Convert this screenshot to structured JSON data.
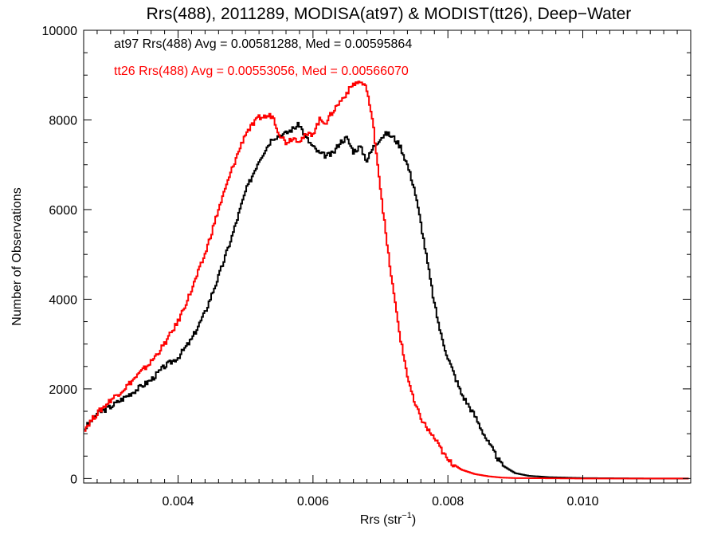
{
  "chart_data": {
    "type": "line",
    "title": "Rrs(488), 2011289, MODISA(at97) & MODIST(tt26), Deep−Water",
    "xlabel": "Rrs (str",
    "xlabel_sup": "−1",
    "xlabel_end": ")",
    "ylabel": "Number of Observations",
    "xlim": [
      0.00261,
      0.01155
    ],
    "ylim": [
      -100,
      10000
    ],
    "x_ticks": [
      0.004,
      0.006,
      0.008,
      0.01
    ],
    "x_tick_labels": [
      "0.004",
      "0.006",
      "0.008",
      "0.010"
    ],
    "y_ticks": [
      0,
      2000,
      4000,
      6000,
      8000,
      10000
    ],
    "y_tick_labels": [
      "0",
      "2000",
      "4000",
      "6000",
      "8000",
      "10000"
    ],
    "grid": false,
    "legend_position": "top-left",
    "series": [
      {
        "name": "at97",
        "color": "#000000",
        "label": "at97 Rrs(488) Avg = 0.00581288, Med = 0.00595864",
        "x": [
          0.00261,
          0.0028,
          0.003,
          0.0032,
          0.0034,
          0.0036,
          0.0038,
          0.004,
          0.0042,
          0.0044,
          0.0046,
          0.0048,
          0.005,
          0.0052,
          0.0054,
          0.0056,
          0.0058,
          0.0059,
          0.006,
          0.0061,
          0.0062,
          0.0063,
          0.0064,
          0.0065,
          0.0066,
          0.0067,
          0.0068,
          0.0069,
          0.007,
          0.0071,
          0.0072,
          0.0073,
          0.0074,
          0.0075,
          0.0076,
          0.0077,
          0.0078,
          0.0079,
          0.008,
          0.0082,
          0.0084,
          0.0086,
          0.0088,
          0.009,
          0.0092,
          0.0095,
          0.01,
          0.0105,
          0.011,
          0.01155
        ],
        "y": [
          1100,
          1450,
          1600,
          1800,
          2000,
          2200,
          2500,
          2700,
          3100,
          3700,
          4500,
          5400,
          6400,
          7100,
          7600,
          7700,
          7900,
          7600,
          7400,
          7250,
          7200,
          7250,
          7500,
          7600,
          7300,
          7400,
          7100,
          7400,
          7600,
          7700,
          7600,
          7400,
          7000,
          6500,
          5700,
          4800,
          3900,
          3200,
          2700,
          1900,
          1400,
          800,
          300,
          120,
          60,
          30,
          10,
          5,
          0,
          0
        ]
      },
      {
        "name": "tt26",
        "color": "#ff0000",
        "label": "tt26 Rrs(488) Avg = 0.00553056, Med = 0.00566070",
        "x": [
          0.00261,
          0.0028,
          0.003,
          0.0032,
          0.0034,
          0.0036,
          0.0038,
          0.004,
          0.0042,
          0.0044,
          0.0046,
          0.0048,
          0.005,
          0.0052,
          0.0054,
          0.0055,
          0.0056,
          0.0057,
          0.0058,
          0.0059,
          0.006,
          0.0061,
          0.0062,
          0.0063,
          0.0064,
          0.0065,
          0.0066,
          0.0067,
          0.0068,
          0.0069,
          0.007,
          0.0071,
          0.0072,
          0.0073,
          0.0074,
          0.0075,
          0.0076,
          0.0077,
          0.0078,
          0.0079,
          0.008,
          0.0082,
          0.0084,
          0.0086,
          0.0088,
          0.009,
          0.0095,
          0.01,
          0.0105,
          0.01155
        ],
        "y": [
          1100,
          1450,
          1750,
          2000,
          2300,
          2600,
          3000,
          3500,
          4200,
          5000,
          6000,
          6900,
          7700,
          8050,
          8100,
          7700,
          7500,
          7600,
          7550,
          7650,
          7700,
          8000,
          7950,
          8200,
          8400,
          8600,
          8800,
          8850,
          8700,
          7800,
          6500,
          5200,
          4100,
          3100,
          2300,
          1700,
          1350,
          1100,
          900,
          650,
          400,
          200,
          100,
          50,
          20,
          10,
          5,
          0,
          0,
          0
        ]
      }
    ]
  }
}
